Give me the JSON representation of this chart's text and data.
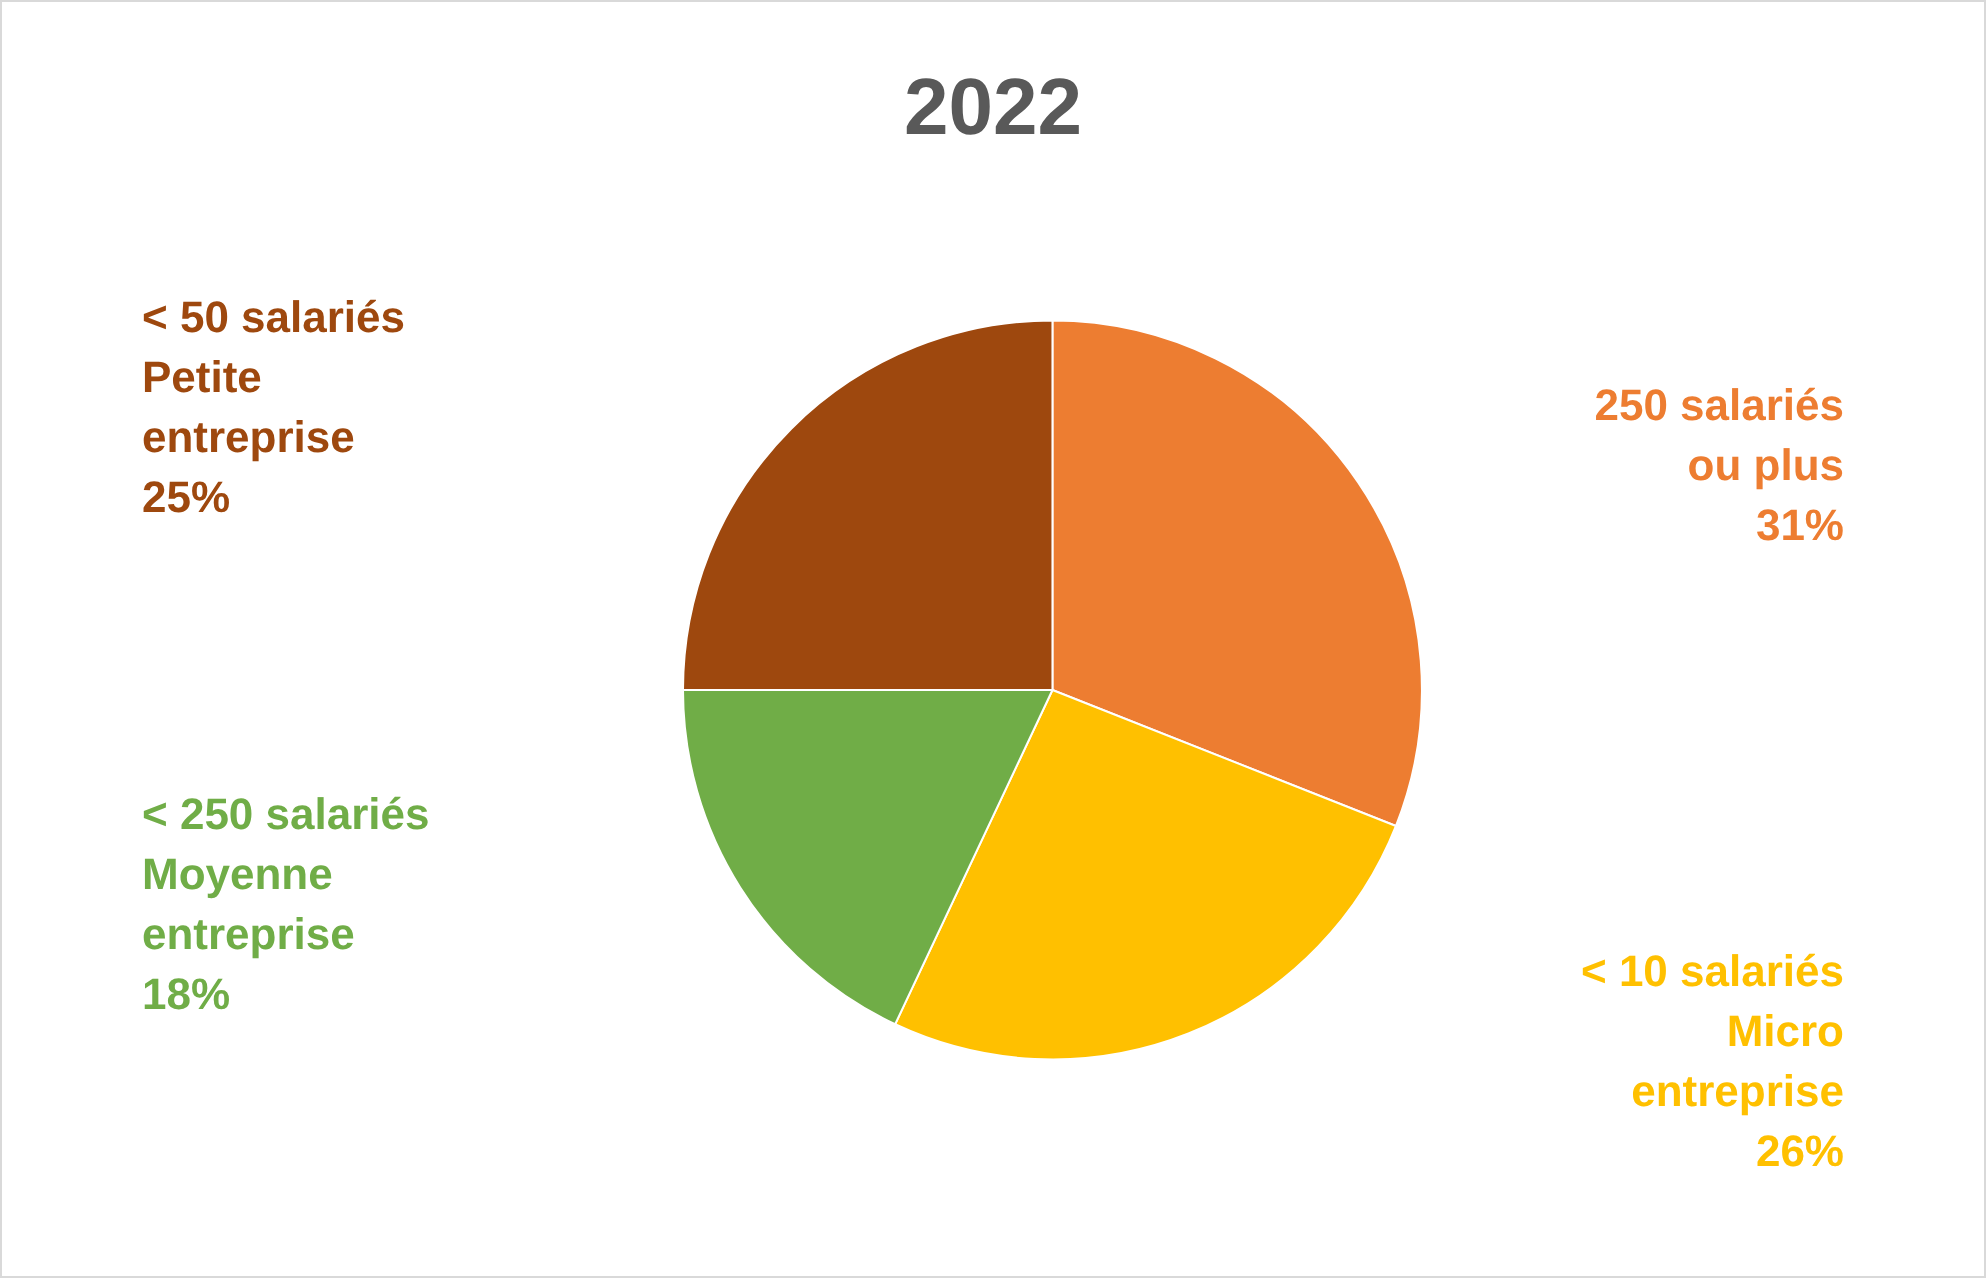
{
  "chart_data": {
    "type": "pie",
    "title": "2022",
    "categories": [
      "250 salariés\nou plus",
      "< 10 salariés\nMicro\nentreprise",
      "< 250 salariés\nMoyenne\nentreprise",
      "< 50 salariés\nPetite\nentreprise"
    ],
    "values": [
      31,
      26,
      18,
      25
    ],
    "colors": [
      "#ed7d31",
      "#ffc000",
      "#70ad47",
      "#9e480e"
    ],
    "value_labels": [
      "31%",
      "26%",
      "18%",
      "25%"
    ]
  }
}
